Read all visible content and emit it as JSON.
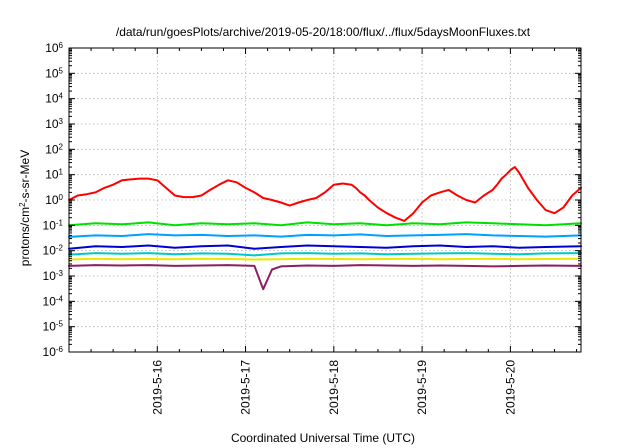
{
  "chart_data": {
    "type": "line",
    "title": "/data/run/goesPlots/archive/2019-05-20/18:00/flux/../flux/5daysMoonFluxes.txt",
    "xlabel": "Coordinated Universal Time (UTC)",
    "ylabel": "protons/cm²-s-sr-MeV",
    "ylabel_parts": {
      "pre": "protons/cm",
      "sup": "2",
      "post": "-s-sr-MeV"
    },
    "yscale": "log",
    "ylim": [
      1e-06,
      1000000.0
    ],
    "xlim": [
      0,
      5.8
    ],
    "grid": true,
    "x_tick_positions": [
      1,
      2,
      3,
      4,
      5
    ],
    "x_tick_labels": [
      "2019-5-16",
      "2019-5-17",
      "2019-5-18",
      "2019-5-19",
      "2019-5-20"
    ],
    "y_tick_exponents": [
      -6,
      -5,
      -4,
      -3,
      -2,
      -1,
      0,
      1,
      2,
      3,
      4,
      5,
      6
    ],
    "y_tick_base": "10",
    "series": [
      {
        "color": "#ff0000",
        "x": [
          0.0,
          0.1,
          0.2,
          0.3,
          0.4,
          0.5,
          0.6,
          0.7,
          0.8,
          0.9,
          1.0,
          1.1,
          1.2,
          1.3,
          1.4,
          1.5,
          1.6,
          1.7,
          1.8,
          1.9,
          2.0,
          2.1,
          2.2,
          2.3,
          2.4,
          2.5,
          2.6,
          2.7,
          2.8,
          2.9,
          3.0,
          3.1,
          3.2,
          3.25,
          3.3,
          3.35,
          3.4,
          3.5,
          3.6,
          3.7,
          3.8,
          3.9,
          4.0,
          4.1,
          4.2,
          4.3,
          4.4,
          4.5,
          4.6,
          4.7,
          4.8,
          4.85,
          4.9,
          4.95,
          5.0,
          5.05,
          5.1,
          5.2,
          5.3,
          5.4,
          5.5,
          5.6,
          5.7,
          5.8
        ],
        "y": [
          1.0,
          1.5,
          1.7,
          2.0,
          3.0,
          4.0,
          6.0,
          6.5,
          7.0,
          7.0,
          6.0,
          3.0,
          1.5,
          1.3,
          1.3,
          1.5,
          2.5,
          4.0,
          6.0,
          5.0,
          3.0,
          2.0,
          1.2,
          1.0,
          0.8,
          0.6,
          0.8,
          1.0,
          1.2,
          2.0,
          4.0,
          4.5,
          4.0,
          3.0,
          2.0,
          1.5,
          1.0,
          0.5,
          0.3,
          0.2,
          0.15,
          0.3,
          0.8,
          1.5,
          2.0,
          2.5,
          1.5,
          1.0,
          0.8,
          1.5,
          2.5,
          4.0,
          7.0,
          10.0,
          15.0,
          20.0,
          12.0,
          3.0,
          1.0,
          0.4,
          0.3,
          0.5,
          1.5,
          3.0
        ]
      },
      {
        "color": "#00e000",
        "x": [
          0.0,
          0.3,
          0.6,
          0.9,
          1.2,
          1.5,
          1.8,
          2.1,
          2.4,
          2.7,
          3.0,
          3.3,
          3.6,
          3.9,
          4.2,
          4.5,
          4.8,
          5.1,
          5.4,
          5.8
        ],
        "y": [
          0.1,
          0.12,
          0.11,
          0.13,
          0.1,
          0.12,
          0.11,
          0.12,
          0.1,
          0.13,
          0.11,
          0.12,
          0.1,
          0.12,
          0.11,
          0.13,
          0.12,
          0.11,
          0.1,
          0.12
        ]
      },
      {
        "color": "#00a0ff",
        "x": [
          0.0,
          0.3,
          0.6,
          0.9,
          1.2,
          1.5,
          1.8,
          2.1,
          2.4,
          2.7,
          3.0,
          3.3,
          3.6,
          3.9,
          4.2,
          4.5,
          4.8,
          5.1,
          5.4,
          5.8
        ],
        "y": [
          0.035,
          0.04,
          0.038,
          0.045,
          0.04,
          0.042,
          0.038,
          0.04,
          0.036,
          0.042,
          0.04,
          0.044,
          0.038,
          0.04,
          0.042,
          0.045,
          0.04,
          0.038,
          0.036,
          0.04
        ]
      },
      {
        "color": "#0000d0",
        "x": [
          0.0,
          0.3,
          0.6,
          0.9,
          1.2,
          1.5,
          1.8,
          2.1,
          2.4,
          2.7,
          3.0,
          3.3,
          3.6,
          3.9,
          4.2,
          4.5,
          4.8,
          5.1,
          5.4,
          5.8
        ],
        "y": [
          0.012,
          0.015,
          0.014,
          0.016,
          0.013,
          0.015,
          0.016,
          0.012,
          0.014,
          0.016,
          0.015,
          0.014,
          0.013,
          0.015,
          0.016,
          0.014,
          0.015,
          0.013,
          0.014,
          0.015
        ]
      },
      {
        "color": "#00c8c8",
        "x": [
          0.0,
          0.3,
          0.6,
          0.9,
          1.2,
          1.5,
          1.8,
          2.1,
          2.4,
          2.7,
          3.0,
          3.3,
          3.6,
          3.9,
          4.2,
          4.5,
          4.8,
          5.1,
          5.4,
          5.8
        ],
        "y": [
          0.007,
          0.008,
          0.0075,
          0.008,
          0.0072,
          0.0078,
          0.0076,
          0.0065,
          0.0078,
          0.008,
          0.0075,
          0.0078,
          0.0072,
          0.0076,
          0.0078,
          0.008,
          0.0075,
          0.0072,
          0.0078,
          0.008
        ]
      },
      {
        "color": "#e8e800",
        "x": [
          0.0,
          0.3,
          0.6,
          0.9,
          1.2,
          1.5,
          1.8,
          2.1,
          2.4,
          2.7,
          3.0,
          3.3,
          3.6,
          3.9,
          4.2,
          4.5,
          4.8,
          5.1,
          5.4,
          5.8
        ],
        "y": [
          0.0045,
          0.0048,
          0.0046,
          0.0047,
          0.0046,
          0.0048,
          0.0047,
          0.0045,
          0.0046,
          0.0048,
          0.0047,
          0.0046,
          0.0047,
          0.0048,
          0.0046,
          0.0047,
          0.0048,
          0.0046,
          0.0047,
          0.0048
        ]
      },
      {
        "color": "#8b2060",
        "x": [
          0.0,
          0.3,
          0.6,
          0.9,
          1.2,
          1.5,
          1.8,
          2.1,
          2.2,
          2.3,
          2.4,
          2.7,
          3.0,
          3.3,
          3.6,
          3.9,
          4.2,
          4.5,
          4.8,
          5.1,
          5.4,
          5.8
        ],
        "y": [
          0.0025,
          0.0027,
          0.0026,
          0.0027,
          0.0025,
          0.0026,
          0.0027,
          0.0025,
          0.0003,
          0.0018,
          0.0024,
          0.0026,
          0.0025,
          0.0027,
          0.0026,
          0.0025,
          0.0026,
          0.0025,
          0.0024,
          0.0025,
          0.0026,
          0.0025
        ]
      }
    ]
  }
}
